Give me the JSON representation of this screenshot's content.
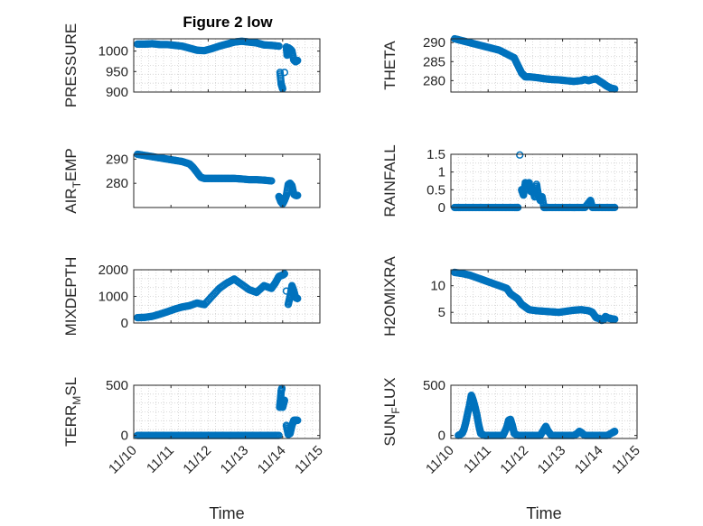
{
  "figure": {
    "title": "Figure 2 low",
    "marker_color": "#0072BD"
  },
  "chart_data": [
    {
      "type": "scatter",
      "ylabel": "PRESSURE",
      "xlim": [
        0,
        5
      ],
      "ylim": [
        900,
        1030
      ],
      "yticks": [
        900,
        950,
        1000
      ],
      "ytick_labels": [
        "900",
        "950",
        "1000"
      ],
      "xticks": [
        0,
        1,
        2,
        3,
        4,
        5
      ],
      "xtick_labels": [],
      "grid": true,
      "x": [
        0.1,
        0.3,
        0.5,
        0.7,
        0.9,
        1.1,
        1.3,
        1.5,
        1.7,
        1.9,
        2.1,
        2.3,
        2.5,
        2.7,
        2.9,
        3.1,
        3.3,
        3.5,
        3.7,
        3.9,
        3.93,
        3.96,
        4.0,
        4.05,
        4.1,
        4.12,
        4.15,
        4.2,
        4.25,
        4.3,
        4.35,
        4.4
      ],
      "y": [
        1017,
        1017,
        1018,
        1016,
        1016,
        1014,
        1012,
        1007,
        1002,
        1001,
        1006,
        1012,
        1017,
        1022,
        1024,
        1022,
        1020,
        1015,
        1014,
        1012,
        948,
        920,
        908,
        948,
        1010,
        990,
        1008,
        1005,
        1000,
        978,
        974,
        977
      ]
    },
    {
      "type": "scatter",
      "ylabel": "THETA",
      "xlim": [
        0,
        5
      ],
      "ylim": [
        277,
        291
      ],
      "yticks": [
        280,
        285,
        290
      ],
      "ytick_labels": [
        "280",
        "285",
        "290"
      ],
      "xticks": [
        0,
        1,
        2,
        3,
        4,
        5
      ],
      "xtick_labels": [],
      "grid": true,
      "x": [
        0.1,
        0.3,
        0.5,
        0.7,
        0.9,
        1.1,
        1.3,
        1.5,
        1.7,
        1.8,
        1.9,
        1.95,
        2.0,
        2.1,
        2.3,
        2.5,
        2.7,
        2.9,
        3.1,
        3.3,
        3.5,
        3.6,
        3.7,
        3.8,
        3.9,
        4.0,
        4.05,
        4.1,
        4.15,
        4.2,
        4.3,
        4.4
      ],
      "y": [
        291,
        290.5,
        290,
        289.5,
        289,
        288.5,
        288,
        287,
        286,
        284,
        282,
        281.5,
        281,
        281,
        280.8,
        280.5,
        280.3,
        280.2,
        280,
        279.8,
        280,
        280.3,
        280,
        280.3,
        280.5,
        279.8,
        279.5,
        279.2,
        278.8,
        278.5,
        278,
        277.8
      ]
    },
    {
      "type": "scatter",
      "ylabel": "AIR_TEMP",
      "xlim": [
        0,
        5
      ],
      "ylim": [
        270,
        292
      ],
      "yticks": [
        280,
        290
      ],
      "ytick_labels": [
        "280",
        "290"
      ],
      "xticks": [
        0,
        1,
        2,
        3,
        4,
        5
      ],
      "xtick_labels": [],
      "grid": false,
      "x": [
        0.1,
        0.3,
        0.5,
        0.7,
        0.9,
        1.1,
        1.3,
        1.5,
        1.6,
        1.7,
        1.8,
        1.9,
        2.1,
        2.3,
        2.5,
        2.7,
        2.9,
        3.1,
        3.3,
        3.5,
        3.7,
        3.9,
        3.95,
        4.0,
        4.05,
        4.1,
        4.15,
        4.2,
        4.25,
        4.3,
        4.35,
        4.4
      ],
      "y": [
        292,
        291.5,
        291,
        290.5,
        290,
        289.5,
        289,
        288,
        286.5,
        284.5,
        282.5,
        282,
        282,
        282,
        282,
        282,
        281.8,
        281.5,
        281.5,
        281.3,
        281,
        274.5,
        272.5,
        271.5,
        273,
        275,
        279.5,
        280,
        279,
        275.5,
        275,
        275
      ]
    },
    {
      "type": "scatter",
      "ylabel": "RAINFALL",
      "xlim": [
        0,
        5
      ],
      "ylim": [
        0,
        1.5
      ],
      "yticks": [
        0,
        0.5,
        1,
        1.5
      ],
      "ytick_labels": [
        "0",
        "0.5",
        "1",
        "1.5"
      ],
      "xticks": [
        0,
        1,
        2,
        3,
        4,
        5
      ],
      "xtick_labels": [],
      "grid": true,
      "x": [
        0.1,
        0.3,
        0.5,
        0.7,
        0.9,
        1.1,
        1.3,
        1.5,
        1.7,
        1.8,
        1.85,
        1.9,
        1.95,
        2.0,
        2.05,
        2.1,
        2.15,
        2.2,
        2.25,
        2.3,
        2.35,
        2.4,
        2.45,
        2.5,
        2.6,
        2.8,
        3.0,
        3.2,
        3.4,
        3.6,
        3.75,
        3.8,
        4.0,
        4.2,
        4.4
      ],
      "y": [
        0,
        0,
        0,
        0,
        0,
        0,
        0,
        0,
        0,
        0,
        1.48,
        0.5,
        0.35,
        0.7,
        0.6,
        0.7,
        0.45,
        0.5,
        0.3,
        0.65,
        0.35,
        0.2,
        0.3,
        0,
        0,
        0,
        0,
        0,
        0,
        0,
        0.2,
        0,
        0,
        0,
        0
      ]
    },
    {
      "type": "scatter",
      "ylabel": "MIXDEPTH",
      "xlim": [
        0,
        5
      ],
      "ylim": [
        0,
        2000
      ],
      "yticks": [
        0,
        1000,
        2000
      ],
      "ytick_labels": [
        "0",
        "1000",
        "2000"
      ],
      "xticks": [
        0,
        1,
        2,
        3,
        4,
        5
      ],
      "xtick_labels": [],
      "grid": true,
      "x": [
        0.1,
        0.3,
        0.5,
        0.7,
        0.9,
        1.1,
        1.3,
        1.5,
        1.7,
        1.9,
        2.1,
        2.3,
        2.5,
        2.7,
        2.9,
        3.1,
        3.3,
        3.5,
        3.7,
        3.8,
        3.9,
        4.0,
        4.05,
        4.1,
        4.15,
        4.2,
        4.25,
        4.3,
        4.35,
        4.4
      ],
      "y": [
        200,
        210,
        250,
        330,
        420,
        520,
        600,
        650,
        750,
        690,
        1000,
        1300,
        1500,
        1650,
        1450,
        1250,
        1150,
        1400,
        1300,
        1500,
        1750,
        1800,
        1850,
        1200,
        700,
        1000,
        1400,
        1200,
        950,
        920
      ]
    },
    {
      "type": "scatter",
      "ylabel": "H2OMIXRA",
      "xlim": [
        0,
        5
      ],
      "ylim": [
        3,
        13
      ],
      "yticks": [
        5,
        10
      ],
      "ytick_labels": [
        "5",
        "10"
      ],
      "xticks": [
        0,
        1,
        2,
        3,
        4,
        5
      ],
      "xtick_labels": [],
      "grid": true,
      "x": [
        0.1,
        0.3,
        0.5,
        0.7,
        0.9,
        1.1,
        1.3,
        1.5,
        1.6,
        1.7,
        1.8,
        1.9,
        2.0,
        2.1,
        2.3,
        2.5,
        2.7,
        2.9,
        3.1,
        3.3,
        3.5,
        3.7,
        3.8,
        3.9,
        4.0,
        4.05,
        4.1,
        4.15,
        4.2,
        4.3,
        4.4
      ],
      "y": [
        12.5,
        12.3,
        12,
        11.5,
        11,
        10.5,
        10,
        9.5,
        8.5,
        8,
        7.5,
        6.5,
        6,
        5.5,
        5.3,
        5.2,
        5.1,
        5,
        5.2,
        5.4,
        5.5,
        5.3,
        5,
        4,
        3.8,
        3.5,
        3.6,
        4.2,
        4,
        3.8,
        3.7
      ]
    },
    {
      "type": "scatter",
      "ylabel": "TERR_MSL",
      "xlim": [
        0,
        5
      ],
      "ylim": [
        -30,
        500
      ],
      "yticks": [
        0,
        500
      ],
      "ytick_labels": [
        "0",
        "500"
      ],
      "xticks": [
        0,
        1,
        2,
        3,
        4,
        5
      ],
      "xtick_labels": [
        "11/10",
        "11/11",
        "11/12",
        "11/13",
        "11/14",
        "11/15"
      ],
      "xlabel": "Time",
      "grid": true,
      "x": [
        0.1,
        0.3,
        0.5,
        0.7,
        0.9,
        1.1,
        1.3,
        1.5,
        1.7,
        1.9,
        2.1,
        2.3,
        2.5,
        2.7,
        2.9,
        3.1,
        3.3,
        3.5,
        3.7,
        3.9,
        3.92,
        3.94,
        3.96,
        3.98,
        4.0,
        4.05,
        4.1,
        4.15,
        4.2,
        4.25,
        4.3,
        4.35,
        4.4
      ],
      "y": [
        0,
        0,
        0,
        0,
        0,
        0,
        0,
        0,
        0,
        0,
        0,
        0,
        0,
        0,
        0,
        0,
        0,
        0,
        0,
        0,
        280,
        350,
        440,
        470,
        280,
        350,
        100,
        10,
        20,
        100,
        150,
        150,
        150
      ]
    },
    {
      "type": "scatter",
      "ylabel": "SUN_FLUX",
      "xlim": [
        0,
        5
      ],
      "ylim": [
        -30,
        500
      ],
      "yticks": [
        0,
        500
      ],
      "ytick_labels": [
        "0",
        "500"
      ],
      "xticks": [
        0,
        1,
        2,
        3,
        4,
        5
      ],
      "xtick_labels": [
        "11/10",
        "11/11",
        "11/12",
        "11/13",
        "11/14",
        "11/15"
      ],
      "xlabel": "Time",
      "grid": true,
      "x": [
        0.2,
        0.3,
        0.35,
        0.4,
        0.45,
        0.5,
        0.55,
        0.6,
        0.65,
        0.7,
        0.75,
        0.8,
        0.9,
        1.0,
        1.2,
        1.4,
        1.5,
        1.55,
        1.6,
        1.65,
        1.7,
        1.8,
        2.0,
        2.2,
        2.4,
        2.5,
        2.55,
        2.6,
        2.7,
        2.9,
        3.1,
        3.3,
        3.4,
        3.45,
        3.5,
        3.6,
        3.8,
        4.0,
        4.2,
        4.35,
        4.4
      ],
      "y": [
        0,
        20,
        60,
        130,
        220,
        300,
        400,
        350,
        280,
        200,
        100,
        20,
        0,
        0,
        0,
        0,
        80,
        150,
        160,
        100,
        20,
        0,
        0,
        0,
        0,
        60,
        90,
        50,
        0,
        0,
        0,
        0,
        20,
        40,
        30,
        0,
        0,
        0,
        0,
        30,
        40
      ]
    }
  ]
}
